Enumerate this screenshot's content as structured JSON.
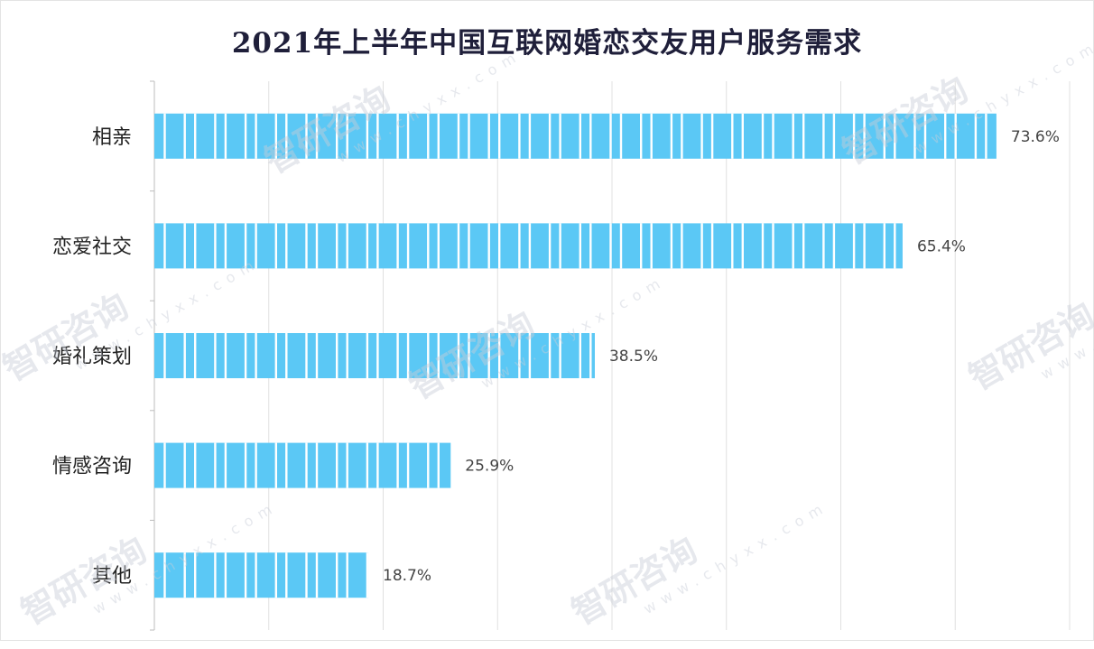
{
  "chart_data": {
    "type": "bar",
    "orientation": "horizontal",
    "title": "2021年上半年中国互联网婚恋交友用户服务需求",
    "categories": [
      "相亲",
      "恋爱社交",
      "婚礼策划",
      "情感咨询",
      "其他"
    ],
    "values": [
      73.6,
      65.4,
      38.5,
      25.9,
      18.7
    ],
    "value_labels": [
      "73.6%",
      "65.4%",
      "38.5%",
      "25.9%",
      "18.7%"
    ],
    "unit": "%",
    "xlim": [
      0,
      80
    ],
    "grid": true,
    "legend": "none",
    "bar_color": "#5bc8f5"
  },
  "watermark": {
    "brand": "智研咨询",
    "url": "www.chyxx.com"
  }
}
